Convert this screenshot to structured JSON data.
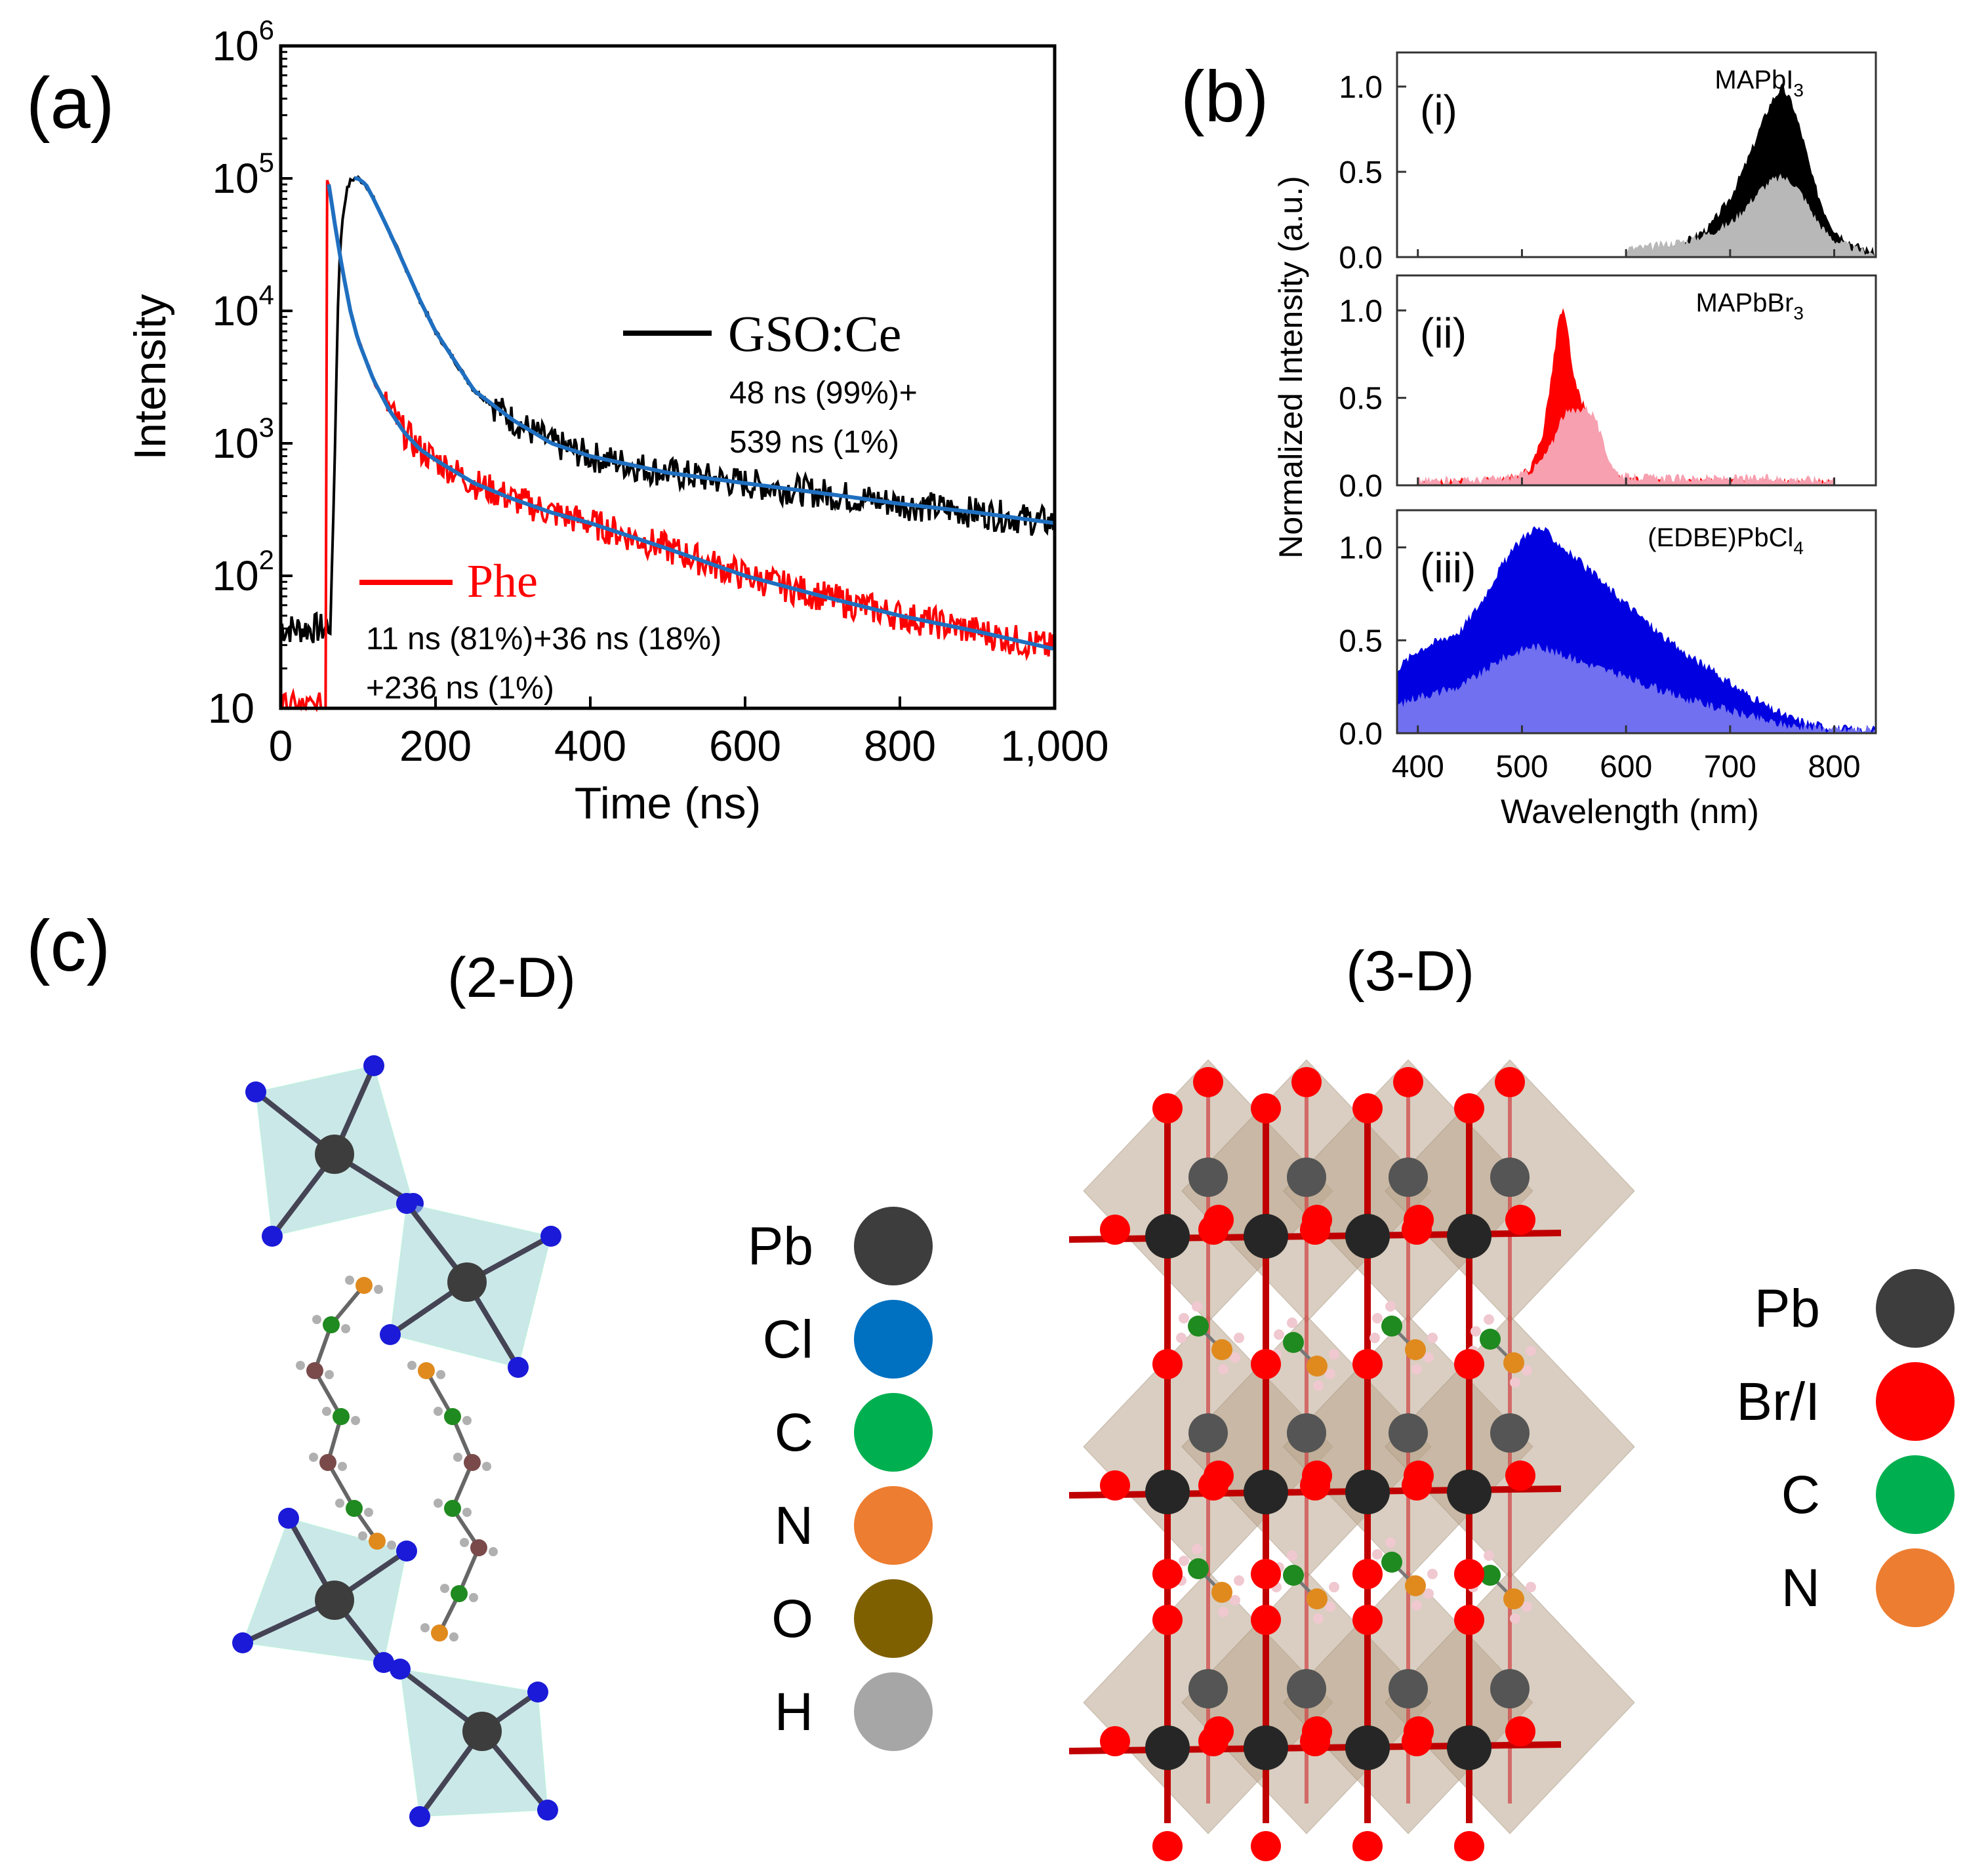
{
  "chart_data": [
    {
      "panel_label": "(a)",
      "type": "line",
      "xlabel": "Time (ns)",
      "ylabel": "Intensity",
      "xlim": [
        0,
        1000
      ],
      "ylim": [
        10,
        1000000
      ],
      "yscale": "log",
      "grid": false,
      "x_ticks": [
        {
          "value": 0,
          "label": "0"
        },
        {
          "value": 200,
          "label": "200"
        },
        {
          "value": 400,
          "label": "400"
        },
        {
          "value": 600,
          "label": "600"
        },
        {
          "value": 800,
          "label": "800"
        },
        {
          "value": 1000,
          "label": "1,000"
        }
      ],
      "y_ticks": [
        {
          "value": 10,
          "base": "10",
          "exp": ""
        },
        {
          "value": 100,
          "base": "10",
          "exp": "2"
        },
        {
          "value": 1000,
          "base": "10",
          "exp": "3"
        },
        {
          "value": 10000,
          "base": "10",
          "exp": "4"
        },
        {
          "value": 100000,
          "base": "10",
          "exp": "5"
        },
        {
          "value": 1000000,
          "base": "10",
          "exp": "6"
        }
      ],
      "series": [
        {
          "name": "GSO:Ce",
          "color": "#000000",
          "fit_text_1": "48 ns (99%)+",
          "fit_text_2": "539 ns (1%)",
          "x": [
            0,
            20,
            40,
            60,
            65,
            70,
            75,
            80,
            85,
            90,
            95,
            100,
            110,
            120,
            140,
            160,
            180,
            200,
            250,
            300,
            350,
            400,
            500,
            600,
            700,
            800,
            900,
            1000
          ],
          "values": [
            40,
            40,
            40,
            40,
            45,
            1000,
            20000,
            50000,
            80000,
            95000,
            100000,
            100000,
            90000,
            70000,
            40000,
            22000,
            12000,
            7000,
            2500,
            1500,
            1000,
            800,
            600,
            500,
            420,
            350,
            300,
            250
          ]
        },
        {
          "name": "Phe",
          "color": "#ff0000",
          "fit_text_1": "11 ns (81%)+36 ns (18%)",
          "fit_text_2": "+236 ns (1%)",
          "x": [
            0,
            55,
            58,
            60,
            62,
            65,
            70,
            80,
            90,
            100,
            120,
            140,
            160,
            180,
            200,
            250,
            300,
            350,
            400,
            500,
            600,
            700,
            800,
            900,
            1000
          ],
          "values": [
            10,
            10,
            10,
            100000,
            90000,
            70000,
            45000,
            20000,
            10000,
            6000,
            3000,
            1800,
            1200,
            900,
            750,
            500,
            380,
            300,
            250,
            160,
            100,
            70,
            50,
            38,
            28
          ]
        }
      ],
      "fit_color": "#1f6fc0"
    },
    {
      "panel_label": "(b)",
      "type": "area",
      "xlabel": "Wavelength (nm)",
      "ylabel": "Normalized Intensity (a.u.)",
      "xlim": [
        380,
        840
      ],
      "ylim": [
        0,
        1.2
      ],
      "x_ticks": [
        400,
        500,
        600,
        700,
        800
      ],
      "y_ticks": [
        "0.0",
        "0.5",
        "1.0"
      ],
      "panels": [
        {
          "label": "(i)",
          "compound": "MAPbI",
          "sub": "3",
          "dark_color": "#000000",
          "light_color": "#b8b8b8",
          "x": [
            600,
            620,
            640,
            660,
            680,
            700,
            710,
            720,
            730,
            740,
            750,
            760,
            770,
            780,
            790,
            800,
            820,
            840
          ],
          "dark": [
            0,
            0.02,
            0.05,
            0.1,
            0.18,
            0.35,
            0.48,
            0.62,
            0.78,
            0.92,
            1.0,
            0.9,
            0.7,
            0.45,
            0.28,
            0.16,
            0.07,
            0.03
          ],
          "light": [
            0.05,
            0.06,
            0.08,
            0.1,
            0.14,
            0.2,
            0.26,
            0.33,
            0.4,
            0.45,
            0.47,
            0.44,
            0.36,
            0.25,
            0.16,
            0.1,
            0.05,
            0.02
          ]
        },
        {
          "label": "(ii)",
          "compound": "MAPbBr",
          "sub": "3",
          "dark_color": "#ff0000",
          "light_color": "#f7a0b0",
          "x": [
            400,
            450,
            480,
            500,
            510,
            520,
            530,
            535,
            540,
            545,
            550,
            560,
            570,
            580,
            590,
            600,
            650,
            700,
            750,
            800
          ],
          "dark": [
            0.02,
            0.02,
            0.03,
            0.06,
            0.12,
            0.3,
            0.7,
            0.95,
            1.0,
            0.85,
            0.6,
            0.45,
            0.3,
            0.12,
            0.05,
            0.03,
            0.02,
            0.02,
            0.02,
            0.02
          ],
          "light": [
            0.03,
            0.03,
            0.04,
            0.06,
            0.09,
            0.15,
            0.25,
            0.35,
            0.4,
            0.42,
            0.42,
            0.45,
            0.4,
            0.2,
            0.08,
            0.05,
            0.04,
            0.04,
            0.04,
            0.03
          ]
        },
        {
          "label": "(iii)",
          "compound": "(EDBE)PbCl",
          "sub": "4",
          "dark_color": "#0000e0",
          "light_color": "#7070f0",
          "x": [
            380,
            400,
            420,
            440,
            460,
            480,
            500,
            510,
            520,
            530,
            540,
            560,
            580,
            600,
            620,
            640,
            660,
            680,
            700,
            720,
            740,
            760,
            780,
            800,
            820,
            840
          ],
          "dark": [
            0.35,
            0.45,
            0.5,
            0.55,
            0.7,
            0.9,
            1.05,
            1.1,
            1.1,
            1.05,
            1.0,
            0.9,
            0.8,
            0.7,
            0.6,
            0.5,
            0.42,
            0.35,
            0.27,
            0.2,
            0.13,
            0.08,
            0.05,
            0.03,
            0.02,
            0.02
          ],
          "light": [
            0.15,
            0.2,
            0.22,
            0.25,
            0.32,
            0.4,
            0.45,
            0.47,
            0.46,
            0.44,
            0.42,
            0.38,
            0.34,
            0.3,
            0.26,
            0.22,
            0.18,
            0.15,
            0.12,
            0.09,
            0.06,
            0.04,
            0.03,
            0.02,
            0.02,
            0.02
          ]
        }
      ]
    }
  ],
  "panel_c": {
    "label": "(c)",
    "title_2d": "(2-D)",
    "title_3d": "(3-D)",
    "legend_2d": [
      {
        "label": "Pb",
        "color": "#3d3d3d"
      },
      {
        "label": "Cl",
        "color": "#0070c0"
      },
      {
        "label": "C",
        "color": "#00b050"
      },
      {
        "label": "N",
        "color": "#ed7d31"
      },
      {
        "label": "O",
        "color": "#7f6000"
      },
      {
        "label": "H",
        "color": "#a6a6a6"
      }
    ],
    "legend_3d": [
      {
        "label": "Pb",
        "color": "#3d3d3d"
      },
      {
        "label": "Br/I",
        "color": "#ff0000"
      },
      {
        "label": "C",
        "color": "#00b050"
      },
      {
        "label": "N",
        "color": "#ed7d31"
      }
    ]
  }
}
